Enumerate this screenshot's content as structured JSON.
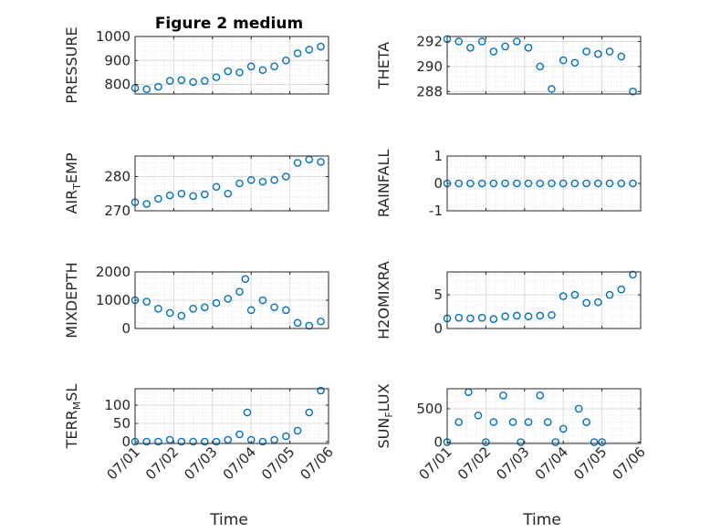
{
  "figure_title": "Figure 2 medium",
  "x_label": "Time",
  "x_tick_labels": [
    "07/01",
    "07/02",
    "07/03",
    "07/04",
    "07/05",
    "07/06"
  ],
  "marker_color": "#0072BD",
  "chart_data": [
    {
      "type": "scatter",
      "title": "Figure 2 medium",
      "ylabel": "PRESSURE",
      "xlim": [
        "07/01",
        "07/06"
      ],
      "ylim": [
        760,
        1000
      ],
      "yticks": [
        800,
        900,
        1000
      ],
      "ytick_labels": [
        "800",
        "900",
        "1000"
      ],
      "xlabel": "",
      "grid": true,
      "series": [
        {
          "values": [
            [
              0,
              785
            ],
            [
              0.3,
              780
            ],
            [
              0.6,
              790
            ],
            [
              0.9,
              815
            ],
            [
              1.2,
              818
            ],
            [
              1.5,
              810
            ],
            [
              1.8,
              815
            ],
            [
              2.1,
              830
            ],
            [
              2.4,
              855
            ],
            [
              2.7,
              850
            ],
            [
              3.0,
              875
            ],
            [
              3.3,
              860
            ],
            [
              3.6,
              875
            ],
            [
              3.9,
              900
            ],
            [
              4.2,
              930
            ],
            [
              4.5,
              945
            ],
            [
              4.8,
              958
            ]
          ]
        }
      ]
    },
    {
      "type": "scatter",
      "ylabel": "THETA",
      "xlim": [
        "07/01",
        "07/06"
      ],
      "ylim": [
        287.8,
        292.4
      ],
      "yticks": [
        288,
        290,
        292
      ],
      "ytick_labels": [
        "288",
        "290",
        "292"
      ],
      "xlabel": "",
      "grid": true,
      "series": [
        {
          "values": [
            [
              0,
              292.2
            ],
            [
              0.3,
              292.0
            ],
            [
              0.6,
              291.5
            ],
            [
              0.9,
              292.0
            ],
            [
              1.2,
              291.2
            ],
            [
              1.5,
              291.6
            ],
            [
              1.8,
              292.0
            ],
            [
              2.1,
              291.5
            ],
            [
              2.4,
              290.0
            ],
            [
              2.7,
              288.2
            ],
            [
              3.0,
              290.5
            ],
            [
              3.3,
              290.3
            ],
            [
              3.6,
              291.2
            ],
            [
              3.9,
              291.0
            ],
            [
              4.2,
              291.2
            ],
            [
              4.5,
              290.8
            ],
            [
              4.8,
              288.0
            ]
          ]
        }
      ]
    },
    {
      "type": "scatter",
      "ylabel": "AIR_TEMP",
      "ylabel_main": "AIR",
      "ylabel_sub": "T",
      "ylabel_rest": "EMP",
      "xlim": [
        "07/01",
        "07/06"
      ],
      "ylim": [
        270,
        286
      ],
      "yticks": [
        270,
        280
      ],
      "ytick_labels": [
        "270",
        "280"
      ],
      "xlabel": "",
      "grid": true,
      "series": [
        {
          "values": [
            [
              0,
              272.5
            ],
            [
              0.3,
              272.0
            ],
            [
              0.6,
              273.5
            ],
            [
              0.9,
              274.5
            ],
            [
              1.2,
              275.0
            ],
            [
              1.5,
              274.3
            ],
            [
              1.8,
              274.8
            ],
            [
              2.1,
              277.0
            ],
            [
              2.4,
              275.0
            ],
            [
              2.7,
              278.0
            ],
            [
              3.0,
              279.0
            ],
            [
              3.3,
              278.5
            ],
            [
              3.6,
              279.0
            ],
            [
              3.9,
              280.0
            ],
            [
              4.2,
              284.0
            ],
            [
              4.5,
              285.0
            ],
            [
              4.8,
              284.3
            ]
          ]
        }
      ]
    },
    {
      "type": "scatter",
      "ylabel": "RAINFALL",
      "xlim": [
        "07/01",
        "07/06"
      ],
      "ylim": [
        -1,
        1
      ],
      "yticks": [
        -1,
        0,
        1
      ],
      "ytick_labels": [
        "-1",
        "0",
        "1"
      ],
      "xlabel": "",
      "grid": true,
      "series": [
        {
          "values": [
            [
              0,
              0
            ],
            [
              0.3,
              0
            ],
            [
              0.6,
              0
            ],
            [
              0.9,
              0
            ],
            [
              1.2,
              0
            ],
            [
              1.5,
              0
            ],
            [
              1.8,
              0
            ],
            [
              2.1,
              0
            ],
            [
              2.4,
              0
            ],
            [
              2.7,
              0
            ],
            [
              3.0,
              0
            ],
            [
              3.3,
              0
            ],
            [
              3.6,
              0
            ],
            [
              3.9,
              0
            ],
            [
              4.2,
              0
            ],
            [
              4.5,
              0
            ],
            [
              4.8,
              0
            ]
          ]
        }
      ]
    },
    {
      "type": "scatter",
      "ylabel": "MIXDEPTH",
      "xlim": [
        "07/01",
        "07/06"
      ],
      "ylim": [
        0,
        2000
      ],
      "yticks": [
        0,
        1000,
        2000
      ],
      "ytick_labels": [
        "0",
        "1000",
        "2000"
      ],
      "xlabel": "",
      "grid": true,
      "series": [
        {
          "values": [
            [
              0,
              1000
            ],
            [
              0.3,
              950
            ],
            [
              0.6,
              700
            ],
            [
              0.9,
              550
            ],
            [
              1.2,
              450
            ],
            [
              1.5,
              700
            ],
            [
              1.8,
              750
            ],
            [
              2.1,
              900
            ],
            [
              2.4,
              1050
            ],
            [
              2.7,
              1300
            ],
            [
              2.85,
              1750
            ],
            [
              3.0,
              650
            ],
            [
              3.3,
              1000
            ],
            [
              3.6,
              750
            ],
            [
              3.9,
              650
            ],
            [
              4.2,
              200
            ],
            [
              4.5,
              100
            ],
            [
              4.8,
              250
            ]
          ]
        }
      ]
    },
    {
      "type": "scatter",
      "ylabel": "H2OMIXRA",
      "xlim": [
        "07/01",
        "07/06"
      ],
      "ylim": [
        0,
        8.4
      ],
      "yticks": [
        0,
        5
      ],
      "ytick_labels": [
        "0",
        "5"
      ],
      "xlabel": "",
      "grid": true,
      "series": [
        {
          "values": [
            [
              0,
              1.5
            ],
            [
              0.3,
              1.6
            ],
            [
              0.6,
              1.5
            ],
            [
              0.9,
              1.6
            ],
            [
              1.2,
              1.4
            ],
            [
              1.5,
              1.8
            ],
            [
              1.8,
              1.9
            ],
            [
              2.1,
              1.8
            ],
            [
              2.4,
              1.9
            ],
            [
              2.7,
              2.0
            ],
            [
              3.0,
              4.8
            ],
            [
              3.3,
              5.0
            ],
            [
              3.6,
              3.8
            ],
            [
              3.9,
              3.9
            ],
            [
              4.2,
              5.0
            ],
            [
              4.5,
              5.8
            ],
            [
              4.8,
              8.0
            ]
          ]
        }
      ]
    },
    {
      "type": "scatter",
      "ylabel": "TERR_MSL",
      "ylabel_main": "TERR",
      "ylabel_sub": "M",
      "ylabel_rest": "SL",
      "xlim": [
        "07/01",
        "07/06"
      ],
      "ylim": [
        -5,
        145
      ],
      "yticks": [
        0,
        50,
        100
      ],
      "ytick_labels": [
        "0",
        "50",
        "100"
      ],
      "xlabel": "Time",
      "grid": true,
      "series": [
        {
          "values": [
            [
              0,
              0
            ],
            [
              0.3,
              0
            ],
            [
              0.6,
              0
            ],
            [
              0.9,
              5
            ],
            [
              1.2,
              0
            ],
            [
              1.5,
              0
            ],
            [
              1.8,
              0
            ],
            [
              2.1,
              0
            ],
            [
              2.4,
              5
            ],
            [
              2.7,
              20
            ],
            [
              2.9,
              80
            ],
            [
              3.0,
              5
            ],
            [
              3.3,
              0
            ],
            [
              3.6,
              5
            ],
            [
              3.9,
              15
            ],
            [
              4.2,
              30
            ],
            [
              4.5,
              80
            ],
            [
              4.8,
              140
            ]
          ]
        }
      ]
    },
    {
      "type": "scatter",
      "ylabel": "SUN_FLUX",
      "ylabel_main": "SUN",
      "ylabel_sub": "F",
      "ylabel_rest": "LUX",
      "xlim": [
        "07/01",
        "07/06"
      ],
      "ylim": [
        -20,
        800
      ],
      "yticks": [
        0,
        500
      ],
      "ytick_labels": [
        "0",
        "500"
      ],
      "xlabel": "Time",
      "grid": true,
      "series": [
        {
          "values": [
            [
              0,
              0
            ],
            [
              0.3,
              300
            ],
            [
              0.55,
              750
            ],
            [
              0.8,
              400
            ],
            [
              1.0,
              0
            ],
            [
              1.2,
              300
            ],
            [
              1.45,
              700
            ],
            [
              1.7,
              300
            ],
            [
              1.9,
              0
            ],
            [
              2.1,
              300
            ],
            [
              2.4,
              700
            ],
            [
              2.6,
              300
            ],
            [
              2.8,
              0
            ],
            [
              3.0,
              200
            ],
            [
              3.4,
              500
            ],
            [
              3.6,
              300
            ],
            [
              3.8,
              0
            ],
            [
              4.0,
              0
            ]
          ]
        }
      ]
    }
  ]
}
